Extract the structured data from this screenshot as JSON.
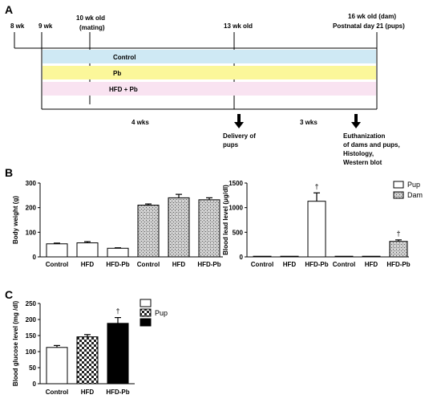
{
  "panel_labels": {
    "a": "A",
    "b": "B",
    "c": "C"
  },
  "timeline": {
    "ticks": [
      {
        "label": "8 wk"
      },
      {
        "label": "9 wk"
      },
      {
        "label": "10 wk old\n(mating)"
      },
      {
        "label": "13 wk old"
      },
      {
        "label": "16 wk old (dam)\nPostnatal day 21 (pups)"
      }
    ],
    "bands": [
      {
        "label": "Control",
        "color": "#cfe9f4"
      },
      {
        "label": "Pb",
        "color": "#fbf79a"
      },
      {
        "label": "HFD + Pb",
        "color": "#f9e3f1"
      }
    ],
    "periods": [
      {
        "label": "4 wks"
      },
      {
        "label": "3 wks"
      }
    ],
    "events": [
      {
        "label": "Delivery of\npups"
      },
      {
        "label": "Euthanization\nof dams and pups,\nHistology,\nWestern blot"
      }
    ]
  },
  "chart_data": [
    {
      "id": "body_weight",
      "type": "bar",
      "ylabel": "Body weight (g)",
      "ylim": [
        0,
        300
      ],
      "yticks": [
        0,
        100,
        200,
        300
      ],
      "categories": [
        "Control",
        "HFD",
        "HFD-Pb",
        "Control",
        "HFD",
        "HFD-Pb"
      ],
      "values": [
        53,
        57,
        35,
        210,
        240,
        232
      ],
      "errors": [
        3,
        5,
        2,
        5,
        14,
        8
      ],
      "patterns": [
        "white",
        "white",
        "white",
        "hatch",
        "hatch",
        "hatch"
      ]
    },
    {
      "id": "blood_lead",
      "type": "bar",
      "ylabel": "Blood lead level (μg/dl)",
      "ylim": [
        0,
        1500
      ],
      "yticks": [
        0,
        500,
        1000,
        1500
      ],
      "categories": [
        "Control",
        "HFD",
        "HFD-Pb",
        "Control",
        "HFD",
        "HFD-Pb"
      ],
      "values": [
        3,
        3,
        1130,
        3,
        3,
        315
      ],
      "errors": [
        1,
        1,
        170,
        1,
        1,
        30
      ],
      "patterns": [
        "white",
        "white",
        "white",
        "hatch",
        "hatch",
        "hatch"
      ],
      "marks": [
        "",
        "",
        "†",
        "",
        "",
        "†"
      ],
      "legend": [
        {
          "name": "Pup",
          "pattern": "white"
        },
        {
          "name": "Dam",
          "pattern": "hatch"
        }
      ],
      "legend_position": "top-right"
    },
    {
      "id": "blood_glucose",
      "type": "bar",
      "ylabel": "Blood glucose level (mg /dl)",
      "ylim": [
        0,
        250
      ],
      "yticks": [
        0,
        50,
        100,
        150,
        200,
        250
      ],
      "categories": [
        "Control",
        "HFD",
        "HFD-Pb"
      ],
      "values": [
        113,
        146,
        188
      ],
      "errors": [
        6,
        7,
        18
      ],
      "patterns": [
        "white",
        "check",
        "black"
      ],
      "marks": [
        "",
        "",
        "†"
      ],
      "legend": [
        {
          "name": "",
          "pattern": "white"
        },
        {
          "name": "Pup",
          "pattern": "check"
        },
        {
          "name": "",
          "pattern": "black"
        }
      ],
      "legend_position": "top-right"
    }
  ]
}
